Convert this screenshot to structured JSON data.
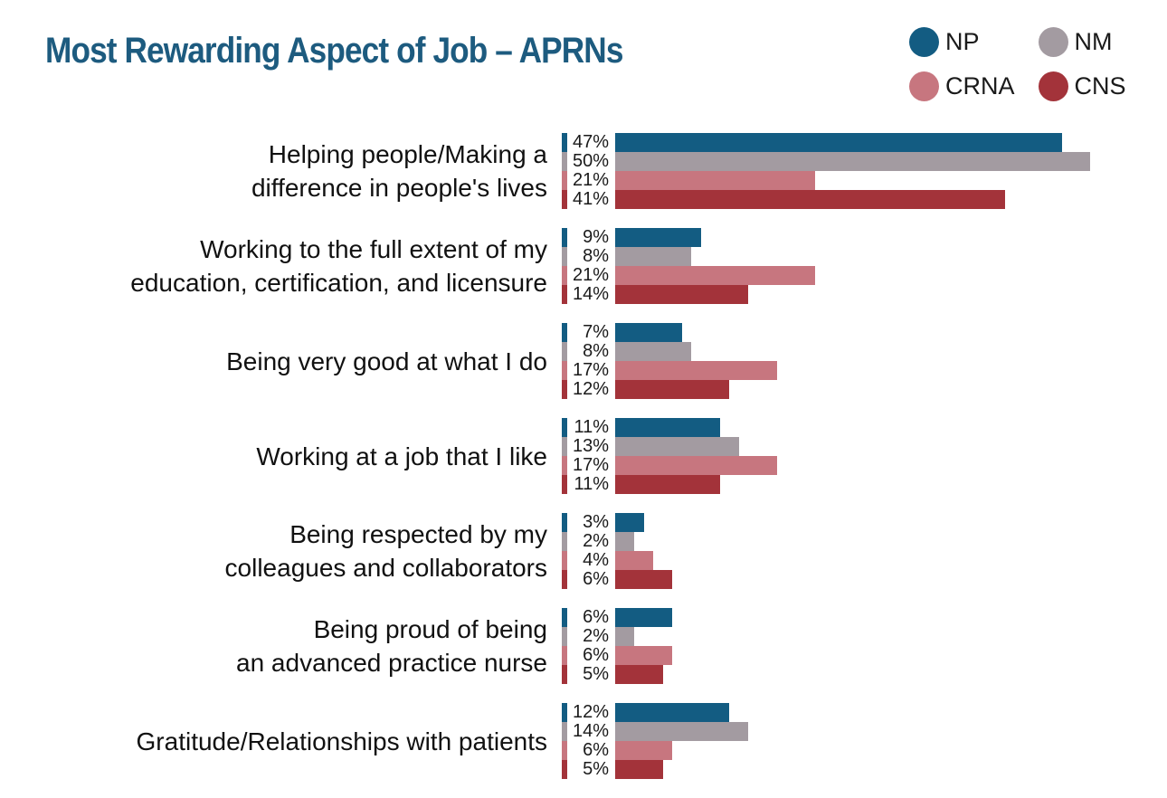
{
  "title": "Most Rewarding Aspect of Job – APRNs",
  "colors": {
    "title_text": "#1d5b7f",
    "np": "#135c82",
    "nm": "#a39ba1",
    "crna": "#c7767f",
    "cns": "#a3333a",
    "label_text": "#1a1a1a",
    "background": "#ffffff"
  },
  "legend": {
    "items": [
      {
        "label": "NP",
        "color": "#135c82"
      },
      {
        "label": "NM",
        "color": "#a39ba1"
      },
      {
        "label": "CRNA",
        "color": "#c7767f"
      },
      {
        "label": "CNS",
        "color": "#a3333a"
      }
    ]
  },
  "chart_data": {
    "type": "bar",
    "orientation": "horizontal",
    "title": "Most Rewarding Aspect of Job – APRNs",
    "value_suffix": "%",
    "data_labels": true,
    "grid": false,
    "legend_position": "top-right",
    "xlim": [
      0,
      55
    ],
    "categories": [
      "Helping people/Making a\ndifference in people's lives",
      "Working to the full extent of my\neducation, certification, and licensure",
      "Being very good at what I do",
      "Working at a job that I like",
      "Being respected by my\ncolleagues and collaborators",
      "Being proud of being\nan advanced practice nurse",
      "Gratitude/Relationships with patients"
    ],
    "series": [
      {
        "name": "NP",
        "color": "#135c82",
        "values": [
          47,
          9,
          7,
          11,
          3,
          6,
          12
        ]
      },
      {
        "name": "NM",
        "color": "#a39ba1",
        "values": [
          50,
          8,
          8,
          13,
          2,
          2,
          14
        ]
      },
      {
        "name": "CRNA",
        "color": "#c7767f",
        "values": [
          21,
          21,
          17,
          17,
          4,
          6,
          6
        ]
      },
      {
        "name": "CNS",
        "color": "#a3333a",
        "values": [
          41,
          14,
          12,
          11,
          6,
          5,
          5
        ]
      }
    ]
  }
}
